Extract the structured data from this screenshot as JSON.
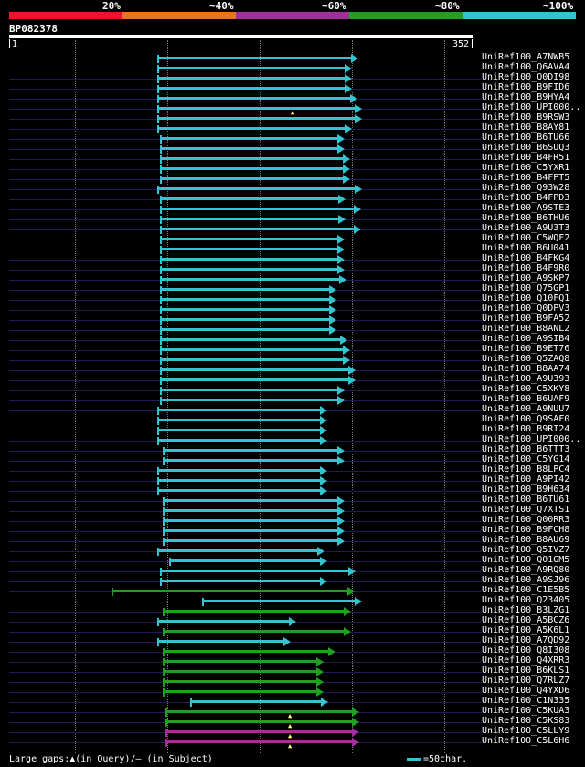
{
  "header": {
    "percent_labels": [
      "20%",
      "~40%",
      "~60%",
      "~80%",
      "~100%"
    ],
    "legend_colors": [
      "#e8152c",
      "#e8761c",
      "#a0309c",
      "#20a020",
      "#35c3cf"
    ]
  },
  "query": {
    "id": "BP082378",
    "start": "1",
    "end": "352"
  },
  "hits": [
    {
      "label": "UniRef100_A7NWB5",
      "color": "cyan",
      "start": 162,
      "end": 374
    },
    {
      "label": "UniRef100_Q6AVA4",
      "color": "cyan",
      "start": 162,
      "end": 367
    },
    {
      "label": "UniRef100_Q0DI98",
      "color": "cyan",
      "start": 162,
      "end": 367
    },
    {
      "label": "UniRef100_B9FID6",
      "color": "cyan",
      "start": 162,
      "end": 367
    },
    {
      "label": "UniRef100_B9HYA4",
      "color": "cyan",
      "start": 162,
      "end": 373
    },
    {
      "label": "UniRef100_UPI000..",
      "color": "cyan",
      "start": 162,
      "end": 378,
      "gap": true
    },
    {
      "label": "UniRef100_B9RSW3",
      "color": "cyan",
      "start": 162,
      "end": 378
    },
    {
      "label": "UniRef100_B8AY81",
      "color": "cyan",
      "start": 162,
      "end": 367
    },
    {
      "label": "UniRef100_B6TU66",
      "color": "cyan",
      "start": 165,
      "end": 359
    },
    {
      "label": "UniRef100_B6SUQ3",
      "color": "cyan",
      "start": 165,
      "end": 359
    },
    {
      "label": "UniRef100_B4FR51",
      "color": "cyan",
      "start": 165,
      "end": 365
    },
    {
      "label": "UniRef100_C5YXR1",
      "color": "cyan",
      "start": 165,
      "end": 365
    },
    {
      "label": "UniRef100_B4FPT5",
      "color": "cyan",
      "start": 165,
      "end": 365
    },
    {
      "label": "UniRef100_Q93W28",
      "color": "cyan",
      "start": 162,
      "end": 378
    },
    {
      "label": "UniRef100_B4FPD3",
      "color": "cyan",
      "start": 165,
      "end": 360
    },
    {
      "label": "UniRef100_A9STE3",
      "color": "cyan",
      "start": 165,
      "end": 377
    },
    {
      "label": "UniRef100_B6THU6",
      "color": "cyan",
      "start": 165,
      "end": 360
    },
    {
      "label": "UniRef100_A9U3T3",
      "color": "cyan",
      "start": 165,
      "end": 377
    },
    {
      "label": "UniRef100_C5WQF2",
      "color": "cyan",
      "start": 165,
      "end": 359
    },
    {
      "label": "UniRef100_B6U041",
      "color": "cyan",
      "start": 165,
      "end": 359
    },
    {
      "label": "UniRef100_B4FKG4",
      "color": "cyan",
      "start": 165,
      "end": 359
    },
    {
      "label": "UniRef100_B4F9R0",
      "color": "cyan",
      "start": 165,
      "end": 359
    },
    {
      "label": "UniRef100_A9SKP7",
      "color": "cyan",
      "start": 165,
      "end": 361
    },
    {
      "label": "UniRef100_Q75GP1",
      "color": "cyan",
      "start": 165,
      "end": 350
    },
    {
      "label": "UniRef100_Q10FQ1",
      "color": "cyan",
      "start": 165,
      "end": 350
    },
    {
      "label": "UniRef100_Q0DPV3",
      "color": "cyan",
      "start": 165,
      "end": 350
    },
    {
      "label": "UniRef100_B9FA52",
      "color": "cyan",
      "start": 165,
      "end": 350
    },
    {
      "label": "UniRef100_B8ANL2",
      "color": "cyan",
      "start": 165,
      "end": 350
    },
    {
      "label": "UniRef100_A9SIB4",
      "color": "cyan",
      "start": 165,
      "end": 362
    },
    {
      "label": "UniRef100_B9ET76",
      "color": "cyan",
      "start": 165,
      "end": 365
    },
    {
      "label": "UniRef100_Q5ZAQ8",
      "color": "cyan",
      "start": 165,
      "end": 365
    },
    {
      "label": "UniRef100_B8AA74",
      "color": "cyan",
      "start": 165,
      "end": 371
    },
    {
      "label": "UniRef100_A9U393",
      "color": "cyan",
      "start": 165,
      "end": 371
    },
    {
      "label": "UniRef100_C5XKY8",
      "color": "cyan",
      "start": 165,
      "end": 359
    },
    {
      "label": "UniRef100_B6UAF9",
      "color": "cyan",
      "start": 165,
      "end": 359
    },
    {
      "label": "UniRef100_A9NUU7",
      "color": "cyan",
      "start": 162,
      "end": 340
    },
    {
      "label": "UniRef100_Q9SAF0",
      "color": "cyan",
      "start": 162,
      "end": 340
    },
    {
      "label": "UniRef100_B9RI24",
      "color": "cyan",
      "start": 162,
      "end": 340
    },
    {
      "label": "UniRef100_UPI000..",
      "color": "cyan",
      "start": 162,
      "end": 340
    },
    {
      "label": "UniRef100_B6TTT3",
      "color": "cyan",
      "start": 168,
      "end": 359
    },
    {
      "label": "UniRef100_C5YG14",
      "color": "cyan",
      "start": 168,
      "end": 359
    },
    {
      "label": "UniRef100_B8LPC4",
      "color": "cyan",
      "start": 162,
      "end": 340
    },
    {
      "label": "UniRef100_A9PI42",
      "color": "cyan",
      "start": 162,
      "end": 340
    },
    {
      "label": "UniRef100_B9H634",
      "color": "cyan",
      "start": 162,
      "end": 340
    },
    {
      "label": "UniRef100_B6TU61",
      "color": "cyan",
      "start": 168,
      "end": 359
    },
    {
      "label": "UniRef100_Q7XTS1",
      "color": "cyan",
      "start": 168,
      "end": 359
    },
    {
      "label": "UniRef100_Q00RR3",
      "color": "cyan",
      "start": 168,
      "end": 359
    },
    {
      "label": "UniRef100_B9FCH8",
      "color": "cyan",
      "start": 168,
      "end": 359
    },
    {
      "label": "UniRef100_B8AU69",
      "color": "cyan",
      "start": 168,
      "end": 359
    },
    {
      "label": "UniRef100_Q5IVZ7",
      "color": "cyan",
      "start": 162,
      "end": 337
    },
    {
      "label": "UniRef100_Q01GM5",
      "color": "cyan",
      "start": 175,
      "end": 340
    },
    {
      "label": "UniRef100_A9RQ80",
      "color": "cyan",
      "start": 165,
      "end": 371
    },
    {
      "label": "UniRef100_A9SJ96",
      "color": "cyan",
      "start": 165,
      "end": 340
    },
    {
      "label": "UniRef100_C1E5B5",
      "color": "green",
      "start": 112,
      "end": 370
    },
    {
      "label": "UniRef100_Q23405",
      "color": "cyan",
      "start": 211,
      "end": 378
    },
    {
      "label": "UniRef100_B3LZG1",
      "color": "green",
      "start": 168,
      "end": 366
    },
    {
      "label": "UniRef100_A5BCZ6",
      "color": "cyan",
      "start": 162,
      "end": 306
    },
    {
      "label": "UniRef100_A5K6L1",
      "color": "green",
      "start": 168,
      "end": 366
    },
    {
      "label": "UniRef100_A7QD92",
      "color": "cyan",
      "start": 162,
      "end": 300
    },
    {
      "label": "UniRef100_Q8I308",
      "color": "green",
      "start": 168,
      "end": 349
    },
    {
      "label": "UniRef100_Q4XRR3",
      "color": "green",
      "start": 168,
      "end": 336
    },
    {
      "label": "UniRef100_B6KLS1",
      "color": "green",
      "start": 168,
      "end": 336
    },
    {
      "label": "UniRef100_Q7RLZ7",
      "color": "green",
      "start": 168,
      "end": 336
    },
    {
      "label": "UniRef100_Q4YXD6",
      "color": "green",
      "start": 168,
      "end": 336
    },
    {
      "label": "UniRef100_C1N335",
      "color": "cyan",
      "start": 198,
      "end": 341
    },
    {
      "label": "UniRef100_C5KUA3",
      "color": "green",
      "start": 171,
      "end": 375,
      "gap": true
    },
    {
      "label": "UniRef100_C5KS83",
      "color": "green",
      "start": 171,
      "end": 375,
      "gap": true
    },
    {
      "label": "UniRef100_C5LLY9",
      "color": "purple",
      "start": 171,
      "end": 375,
      "gap": true
    },
    {
      "label": "UniRef100_C5L6H6",
      "color": "purple",
      "start": 171,
      "end": 375,
      "gap": true
    }
  ],
  "footer": {
    "large_gaps": "Large gaps:▲(in Query)/– (in Subject)",
    "scale_label": "=50char."
  }
}
